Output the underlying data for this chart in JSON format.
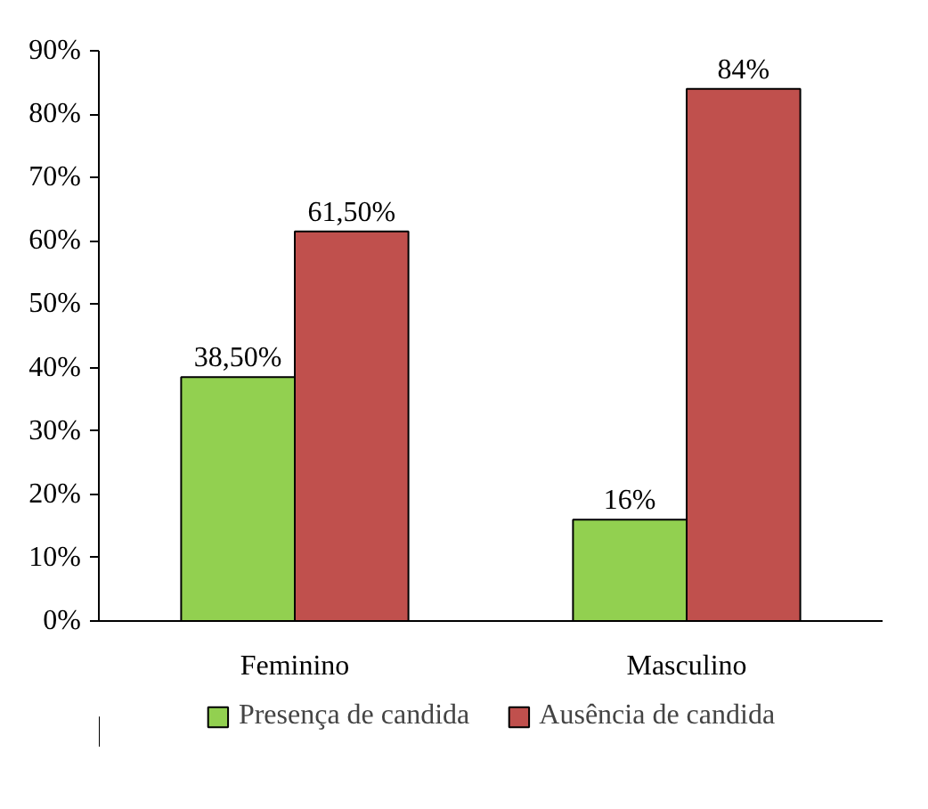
{
  "chart_data": {
    "type": "bar",
    "categories": [
      "Feminino",
      "Masculino"
    ],
    "series": [
      {
        "name": "Presença de candida",
        "color": "#92d050",
        "values": [
          38.5,
          16
        ],
        "value_labels": [
          "38,50%",
          "16%"
        ]
      },
      {
        "name": "Ausência de candida",
        "color": "#c0504d",
        "values": [
          61.5,
          84
        ],
        "value_labels": [
          "61,50%",
          "84%"
        ]
      }
    ],
    "ylim": [
      0,
      90
    ],
    "yticks": [
      {
        "value": 0,
        "label": "0%"
      },
      {
        "value": 10,
        "label": "10%"
      },
      {
        "value": 20,
        "label": "20%"
      },
      {
        "value": 30,
        "label": "30%"
      },
      {
        "value": 40,
        "label": "40%"
      },
      {
        "value": 50,
        "label": "50%"
      },
      {
        "value": 60,
        "label": "60%"
      },
      {
        "value": 70,
        "label": "70%"
      },
      {
        "value": 80,
        "label": "80%"
      },
      {
        "value": 90,
        "label": "90%"
      }
    ],
    "grid": false,
    "legend": "bottom"
  }
}
